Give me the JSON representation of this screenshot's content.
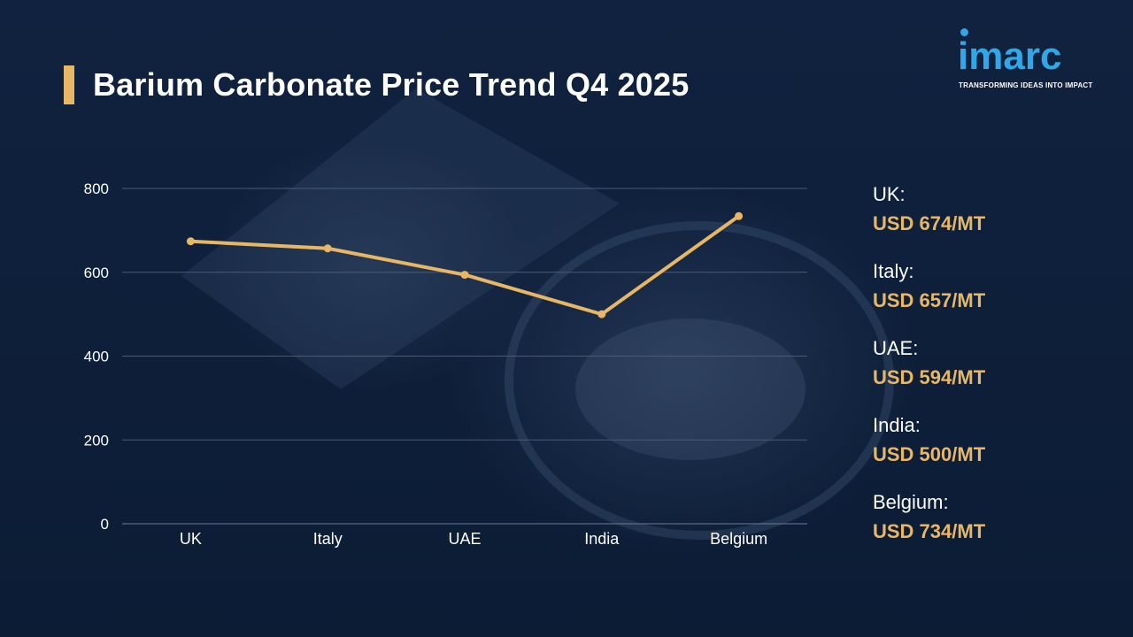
{
  "title": "Barium Carbonate Price Trend Q4 2025",
  "logo": {
    "word": "imarc",
    "tagline": "TRANSFORMING IDEAS INTO IMPACT"
  },
  "colors": {
    "background": "#0d1e38",
    "accent": "#e8b765",
    "logo": "#2ea8e8",
    "grid": "#4a5a72"
  },
  "chart_data": {
    "type": "line",
    "categories": [
      "UK",
      "Italy",
      "UAE",
      "India",
      "Belgium"
    ],
    "series": [
      {
        "values": [
          674,
          657,
          594,
          500,
          734
        ]
      }
    ],
    "yticks": [
      "0",
      "200",
      "400",
      "600",
      "800"
    ],
    "ylim": [
      0,
      800
    ],
    "grid": true,
    "line_color": "#e8b765"
  },
  "legend": [
    {
      "name": "UK:",
      "value": "USD 674/MT"
    },
    {
      "name": "Italy:",
      "value": "USD 657/MT"
    },
    {
      "name": "UAE:",
      "value": "USD 594/MT"
    },
    {
      "name": "India:",
      "value": "USD 500/MT"
    },
    {
      "name": "Belgium:",
      "value": "USD 734/MT"
    }
  ]
}
